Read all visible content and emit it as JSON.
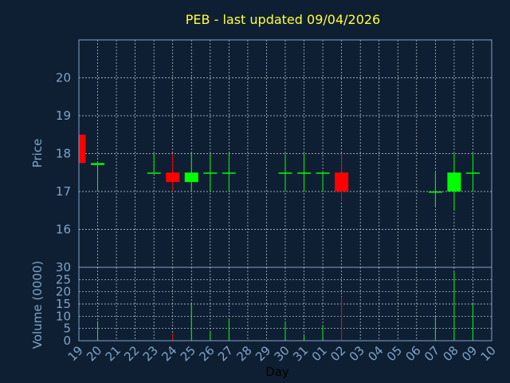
{
  "chart_data": [
    {
      "type": "candlestick",
      "title": "PEB - last updated 09/04/2026",
      "ylabel": "Price",
      "xlabel": "Day",
      "ylim": [
        15,
        21
      ],
      "yticks": [
        16,
        17,
        18,
        19,
        20
      ],
      "grid": true,
      "categories": [
        "19",
        "20",
        "21",
        "22",
        "23",
        "24",
        "25",
        "26",
        "27",
        "28",
        "29",
        "30",
        "31",
        "01",
        "02",
        "03",
        "04",
        "05",
        "06",
        "07",
        "08",
        "09",
        "10"
      ],
      "candles": [
        {
          "x": "19",
          "open": 18.5,
          "high": 18.5,
          "low": 17.75,
          "close": 17.75
        },
        {
          "x": "20",
          "open": 17.7,
          "high": 17.75,
          "low": 17.0,
          "close": 17.75
        },
        {
          "x": "23",
          "open": 17.5,
          "high": 18.0,
          "low": 17.5,
          "close": 17.5
        },
        {
          "x": "24",
          "open": 17.5,
          "high": 18.0,
          "low": 17.0,
          "close": 17.25
        },
        {
          "x": "25",
          "open": 17.25,
          "high": 18.0,
          "low": 17.0,
          "close": 17.5
        },
        {
          "x": "26",
          "open": 17.5,
          "high": 18.0,
          "low": 17.0,
          "close": 17.5
        },
        {
          "x": "27",
          "open": 17.5,
          "high": 18.0,
          "low": 17.0,
          "close": 17.5
        },
        {
          "x": "30",
          "open": 17.5,
          "high": 18.0,
          "low": 17.0,
          "close": 17.5
        },
        {
          "x": "31",
          "open": 17.5,
          "high": 18.0,
          "low": 17.0,
          "close": 17.5
        },
        {
          "x": "01",
          "open": 17.5,
          "high": 17.5,
          "low": 17.0,
          "close": 17.5
        },
        {
          "x": "02",
          "open": 17.5,
          "high": 18.0,
          "low": 16.75,
          "close": 17.0
        },
        {
          "x": "07",
          "open": 17.0,
          "high": 17.5,
          "low": 16.6,
          "close": 17.0
        },
        {
          "x": "08",
          "open": 17.0,
          "high": 18.0,
          "low": 16.5,
          "close": 17.5
        },
        {
          "x": "09",
          "open": 17.5,
          "high": 18.0,
          "low": 17.0,
          "close": 17.5
        }
      ]
    },
    {
      "type": "bar",
      "ylabel": "Volume (0000)",
      "ylim": [
        0,
        30
      ],
      "yticks": [
        0,
        5,
        10,
        15,
        20,
        25,
        30
      ],
      "grid": true,
      "volumes": [
        {
          "x": "20",
          "value": 8,
          "direction": "up"
        },
        {
          "x": "24",
          "value": 3,
          "direction": "down"
        },
        {
          "x": "25",
          "value": 15,
          "direction": "up"
        },
        {
          "x": "26",
          "value": 4,
          "direction": "up"
        },
        {
          "x": "27",
          "value": 9,
          "direction": "up"
        },
        {
          "x": "30",
          "value": 8,
          "direction": "up"
        },
        {
          "x": "31",
          "value": 2,
          "direction": "up"
        },
        {
          "x": "01",
          "value": 6,
          "direction": "up"
        },
        {
          "x": "02",
          "value": 18,
          "direction": "down"
        },
        {
          "x": "07",
          "value": 10,
          "direction": "up"
        },
        {
          "x": "08",
          "value": 28,
          "direction": "up"
        },
        {
          "x": "09",
          "value": 15,
          "direction": "up"
        }
      ]
    }
  ],
  "colors": {
    "background": "#0f1f33",
    "axis": "#7fa3c8",
    "grid": "#c8d4e0",
    "up": "#00ff00",
    "down": "#ff0000",
    "title": "#ffff33"
  }
}
